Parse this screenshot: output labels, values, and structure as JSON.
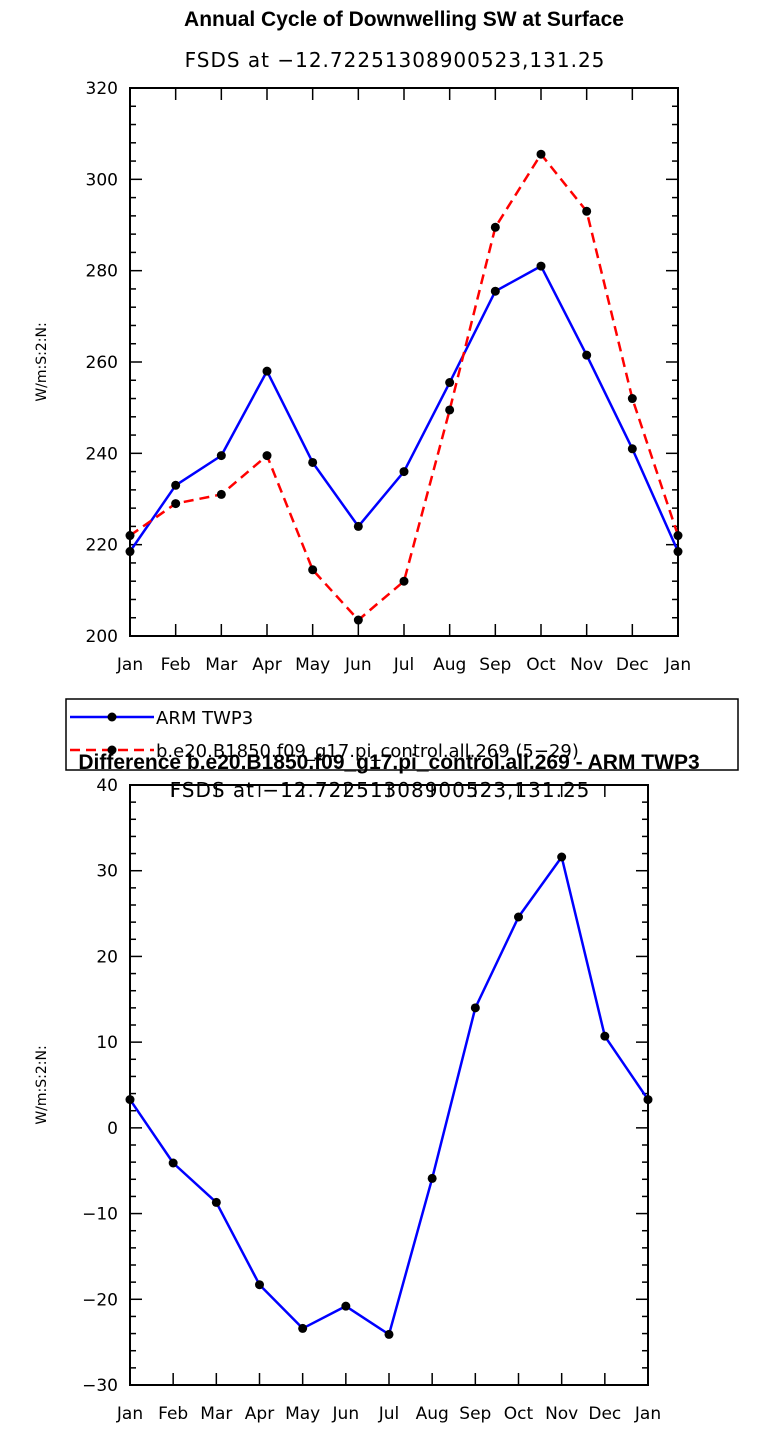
{
  "chart_data": [
    {
      "type": "line",
      "title": "Annual Cycle of Downwelling SW at Surface",
      "subtitle": "FSDS at −12.72251308900523,131.25",
      "ylabel": "W/m:S:2:N:",
      "xlabel": "",
      "categories": [
        "Jan",
        "Feb",
        "Mar",
        "Apr",
        "May",
        "Jun",
        "Jul",
        "Aug",
        "Sep",
        "Oct",
        "Nov",
        "Dec",
        "Jan"
      ],
      "ylim": [
        200,
        320
      ],
      "yticks": [
        200,
        220,
        240,
        260,
        280,
        300,
        320
      ],
      "ytick_labels": [
        "200",
        "220",
        "240",
        "260",
        "280",
        "300",
        "320"
      ],
      "series": [
        {
          "name": "ARM TWP3",
          "color": "#0000ff",
          "dash": "solid",
          "values": [
            218.5,
            233.0,
            239.5,
            258.0,
            238.0,
            224.0,
            236.0,
            255.5,
            275.5,
            281.0,
            261.5,
            241.0,
            218.5
          ]
        },
        {
          "name": "b.e20.B1850.f09_g17.pi_control.all.269 (5−29)",
          "color": "#ff0000",
          "dash": "dashed",
          "values": [
            222.0,
            229.0,
            231.0,
            239.5,
            214.5,
            203.5,
            212.0,
            249.5,
            289.5,
            305.5,
            293.0,
            252.0,
            222.0
          ]
        }
      ],
      "grid": false,
      "legend_position": "below"
    },
    {
      "type": "line",
      "title": "Difference b.e20.B1850.f09_g17.pi_control.all.269 - ARM TWP3",
      "subtitle": "FSDS at −12.72251308900523,131.25",
      "ylabel": "W/m:S:2:N:",
      "xlabel": "",
      "categories": [
        "Jan",
        "Feb",
        "Mar",
        "Apr",
        "May",
        "Jun",
        "Jul",
        "Aug",
        "Sep",
        "Oct",
        "Nov",
        "Dec",
        "Jan"
      ],
      "ylim": [
        -30,
        40
      ],
      "yticks": [
        -30,
        -20,
        -10,
        0,
        10,
        20,
        30,
        40
      ],
      "ytick_labels": [
        "−30",
        "−20",
        "−10",
        "0",
        "10",
        "20",
        "30",
        "40"
      ],
      "series": [
        {
          "color": "#0000ff",
          "dash": "solid",
          "values": [
            3.3,
            -4.1,
            -8.7,
            -18.3,
            -23.4,
            -20.8,
            -24.1,
            -5.9,
            14.0,
            24.6,
            31.6,
            10.7,
            3.3
          ]
        }
      ],
      "grid": false
    }
  ]
}
